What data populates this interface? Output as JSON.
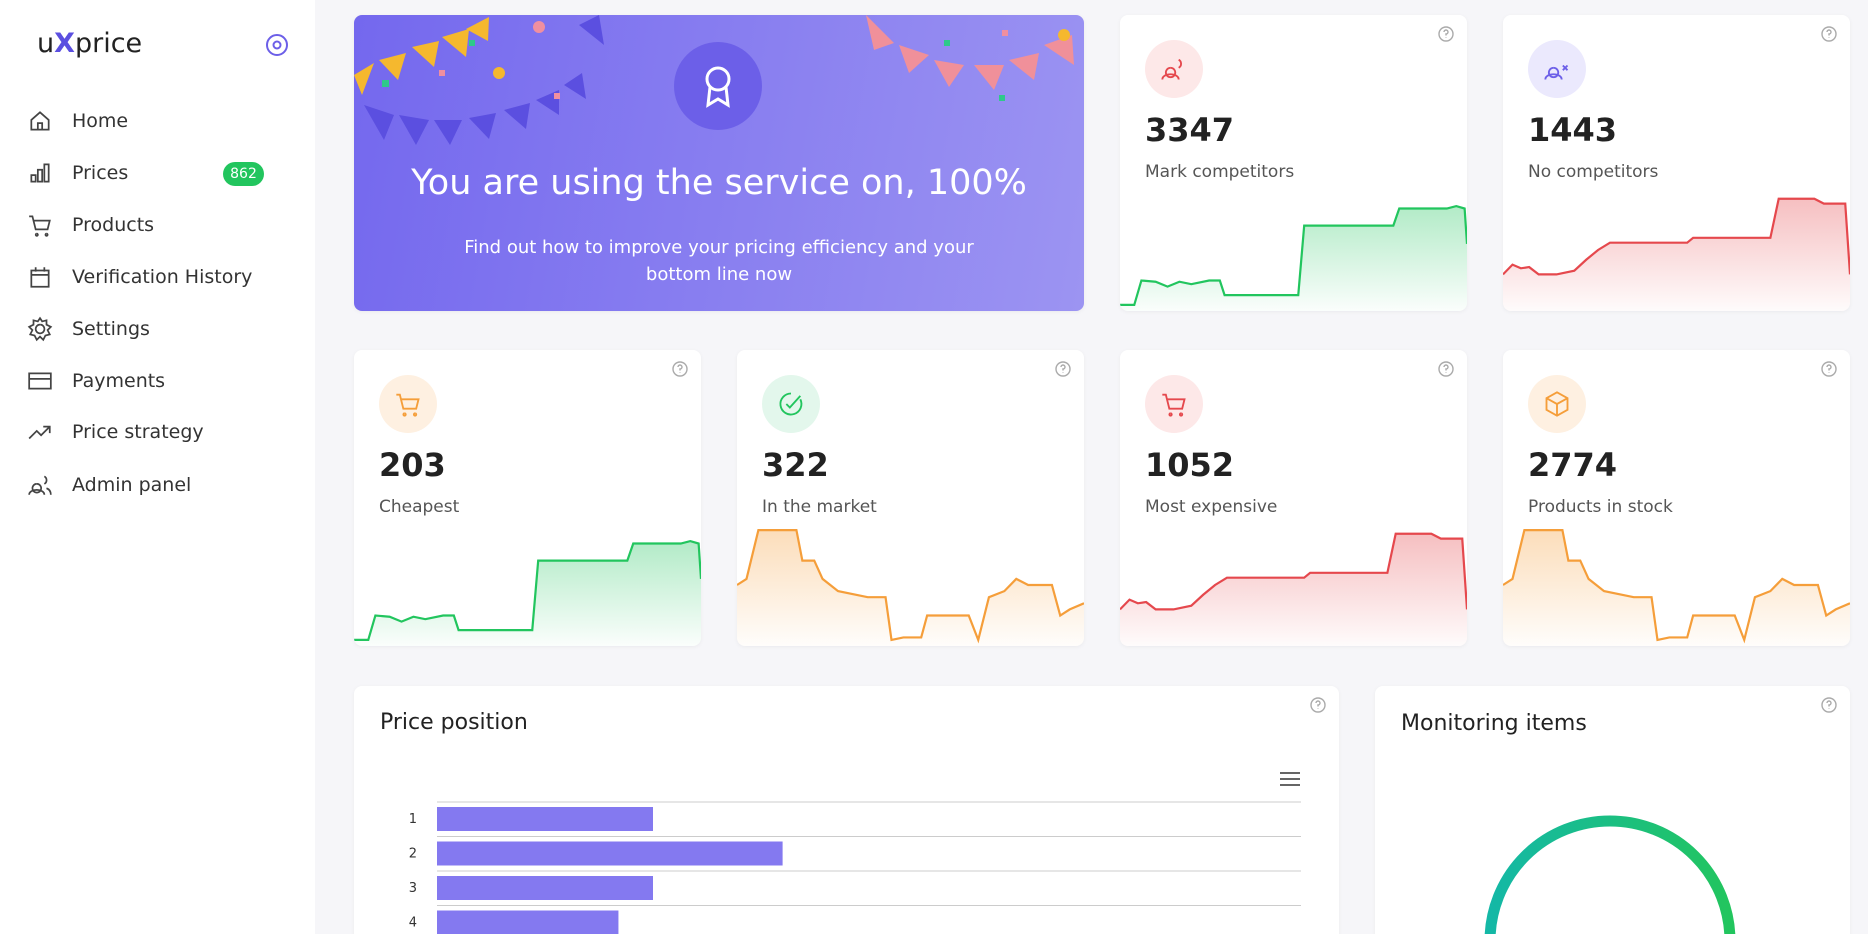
{
  "sidebar": {
    "logo": {
      "prefix": "u",
      "highlight": "X",
      "suffix": "price"
    },
    "items": [
      {
        "label": "Home"
      },
      {
        "label": "Prices",
        "badge": 862
      },
      {
        "label": "Products"
      },
      {
        "label": "Verification History"
      },
      {
        "label": "Settings"
      },
      {
        "label": "Payments"
      },
      {
        "label": "Price strategy"
      },
      {
        "label": "Admin panel"
      }
    ]
  },
  "banner": {
    "title": "You are using the service on, 100%",
    "text": "Find out how to improve your pricing efficiency and your bottom line now"
  },
  "stats": [
    {
      "value": 3347,
      "label": "Mark competitors"
    },
    {
      "value": 1443,
      "label": "No competitors"
    },
    {
      "value": 203,
      "label": "Cheapest"
    },
    {
      "value": 322,
      "label": "In the market"
    },
    {
      "value": 1052,
      "label": "Most expensive"
    },
    {
      "value": 2774,
      "label": "Products in stock"
    }
  ],
  "price_position": {
    "title": "Price position",
    "chart_data": {
      "type": "bar",
      "categories": [
        "1",
        "2",
        "3",
        "4"
      ],
      "values": [
        25,
        40,
        25,
        21
      ],
      "color": "#8479f0"
    }
  },
  "monitoring": {
    "title": "Monitoring items"
  }
}
